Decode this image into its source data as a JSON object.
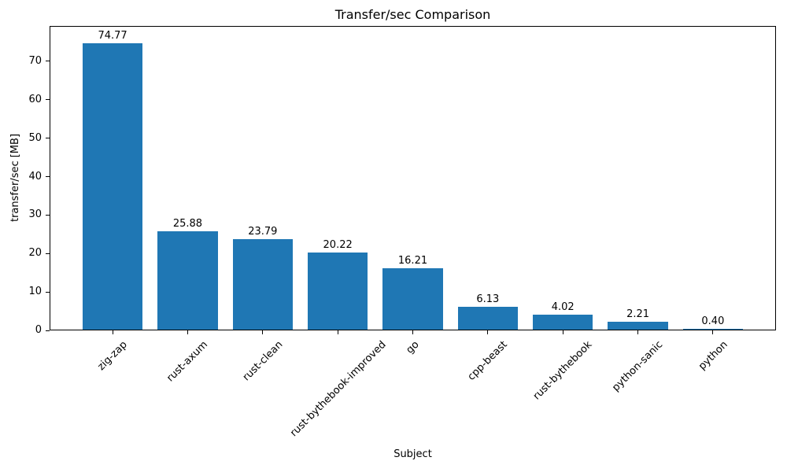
{
  "chart_data": {
    "type": "bar",
    "title": "Transfer/sec Comparison",
    "xlabel": "Subject",
    "ylabel": "transfer/sec [MB]",
    "categories": [
      "zig-zap",
      "rust-axum",
      "rust-clean",
      "rust-bythebook-improved",
      "go",
      "cpp-beast",
      "rust-bythebook",
      "python-sanic",
      "python"
    ],
    "values": [
      74.77,
      25.88,
      23.79,
      20.22,
      16.21,
      6.13,
      4.02,
      2.21,
      0.4
    ],
    "value_label_format": "2-decimals",
    "yticks": [
      0,
      10,
      20,
      30,
      40,
      50,
      60,
      70
    ],
    "ylim": [
      0,
      79.2
    ],
    "x_tick_rotation": 45,
    "grid": false,
    "legend": "none",
    "bar_color": "#1f77b4",
    "text_color": "#000000",
    "background_color": "#ffffff"
  }
}
